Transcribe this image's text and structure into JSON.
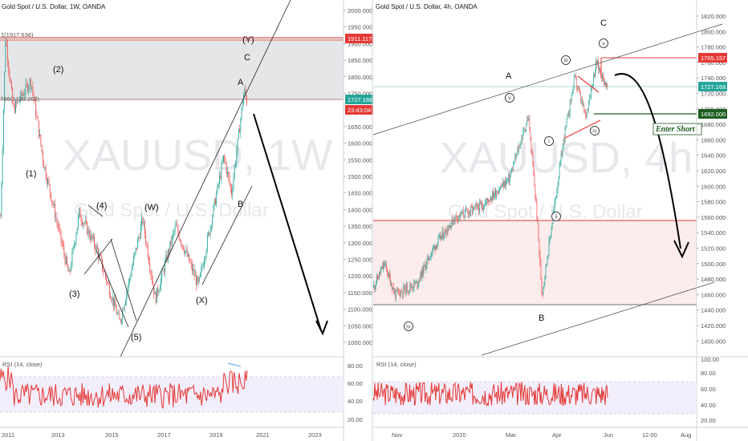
{
  "left": {
    "header": "Gold Spot / U.S. Dollar, 1W, OANDA",
    "watermark_symbol": "XAUUSD, 1W",
    "watermark_name": "Gold Spot / U.S. Dollar",
    "rsi_label": "RSI (14, close)",
    "price_ticks": [
      "2000.000",
      "1950.000",
      "1900.000",
      "1850.000",
      "1800.000",
      "1750.000",
      "1700.000",
      "1650.000",
      "1600.000",
      "1550.000",
      "1500.000",
      "1450.000",
      "1400.000",
      "1350.000",
      "1300.000",
      "1250.000",
      "1200.000",
      "1150.000",
      "1100.000",
      "1050.000",
      "1000.000"
    ],
    "rsi_ticks": [
      "80.00",
      "60.00",
      "40.00",
      "20.00"
    ],
    "time_ticks": [
      "2011",
      "2013",
      "2015",
      "2017",
      "2019",
      "2021",
      "2023"
    ],
    "fib_labels": [
      "1(1917.638)",
      "0.786(1730.202)"
    ],
    "price_boxes": [
      {
        "text": "1911.117",
        "color": "#e53935"
      },
      {
        "text": "1727.168",
        "color": "#26a69a"
      },
      {
        "text": "23:43:04",
        "color": "#e53935"
      }
    ],
    "wave_labels": [
      "(1)",
      "(2)",
      "(3)",
      "(4)",
      "(5)",
      "(W)",
      "(X)",
      "(Y)",
      "A",
      "B",
      "C"
    ]
  },
  "right": {
    "header": "Gold Spot / U.S. Dollar, 4h, OANDA",
    "watermark_symbol": "XAUUSD, 4h",
    "watermark_name": "Gold Spot / U.S. Dollar",
    "rsi_label": "RSI (14, close)",
    "price_ticks": [
      "1820.000",
      "1800.000",
      "1780.000",
      "1760.000",
      "1740.000",
      "1720.000",
      "1700.000",
      "1680.000",
      "1660.000",
      "1640.000",
      "1620.000",
      "1600.000",
      "1580.000",
      "1560.000",
      "1540.000",
      "1520.000",
      "1500.000",
      "1480.000",
      "1460.000",
      "1440.000",
      "1420.000",
      "1400.000"
    ],
    "rsi_ticks": [
      "100.00",
      "80.00",
      "60.00",
      "40.00",
      "20.00"
    ],
    "time_ticks": [
      "Nov",
      "2020",
      "Mar",
      "Apr",
      "Jun",
      "12:00",
      "Aug"
    ],
    "price_boxes": [
      {
        "text": "1765.157",
        "color": "#e53935"
      },
      {
        "text": "1727.168",
        "color": "#26a69a"
      },
      {
        "text": "1692.000",
        "color": "#1b5e20"
      }
    ],
    "wave_labels": [
      "A",
      "B",
      "C",
      "v",
      "iii",
      "i",
      "ii",
      "iv",
      "v",
      "iv"
    ],
    "annotation": "Enter Short"
  },
  "chart_data": [
    {
      "type": "candlestick",
      "instrument": "Gold Spot / U.S. Dollar",
      "interval": "1W",
      "ylim": [
        980,
        2020
      ],
      "x_range": [
        "2011",
        "2023"
      ],
      "series": [
        {
          "name": "XAUUSD",
          "approx_path": [
            [
              2010.8,
              1380
            ],
            [
              2011.0,
              1920
            ],
            [
              2011.3,
              1700
            ],
            [
              2012.0,
              1790
            ],
            [
              2012.5,
              1540
            ],
            [
              2013.5,
              1200
            ],
            [
              2013.9,
              1390
            ],
            [
              2014.6,
              1280
            ],
            [
              2015.5,
              1060
            ],
            [
              2016.4,
              1370
            ],
            [
              2016.9,
              1130
            ],
            [
              2017.7,
              1350
            ],
            [
              2018.6,
              1170
            ],
            [
              2019.6,
              1560
            ],
            [
              2019.9,
              1450
            ],
            [
              2020.4,
              1760
            ],
            [
              2020.5,
              1727
            ]
          ]
        }
      ],
      "horizontal_levels": [
        1917.638,
        1911.117,
        1730.202,
        1727.168
      ],
      "rsi": {
        "label": "RSI (14, close)",
        "ylim": [
          15,
          90
        ],
        "bands": [
          30,
          70
        ]
      }
    },
    {
      "type": "candlestick",
      "instrument": "Gold Spot / U.S. Dollar",
      "interval": "4h",
      "ylim": [
        1390,
        1830
      ],
      "series": [
        {
          "name": "XAUUSD",
          "approx_path": [
            [
              0,
              1470
            ],
            [
              0.04,
              1500
            ],
            [
              0.08,
              1460
            ],
            [
              0.16,
              1475
            ],
            [
              0.22,
              1520
            ],
            [
              0.3,
              1560
            ],
            [
              0.4,
              1575
            ],
            [
              0.5,
              1610
            ],
            [
              0.57,
              1690
            ],
            [
              0.6,
              1570
            ],
            [
              0.62,
              1460
            ],
            [
              0.66,
              1560
            ],
            [
              0.7,
              1660
            ],
            [
              0.74,
              1740
            ],
            [
              0.78,
              1690
            ],
            [
              0.82,
              1760
            ],
            [
              0.86,
              1727
            ]
          ]
        }
      ],
      "horizontal_levels": [
        1765.157,
        1727.168,
        1692.0,
        1560.0,
        1450.0
      ],
      "rsi": {
        "label": "RSI (14, close)",
        "ylim": [
          15,
          100
        ],
        "bands": [
          30,
          70
        ]
      }
    }
  ]
}
